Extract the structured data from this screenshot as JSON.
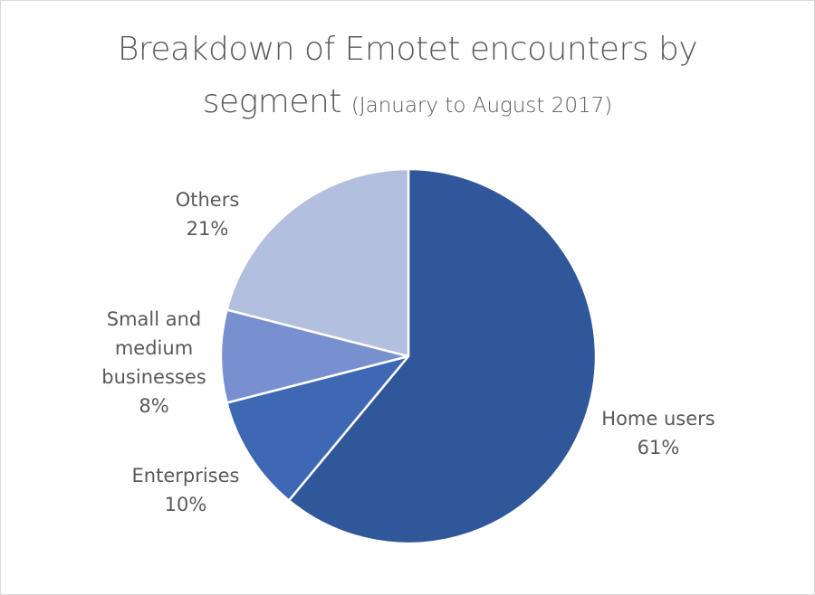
{
  "title": {
    "line1": "Breakdown of Emotet encounters by",
    "line2_main": "segment",
    "line2_sub": "(January to August 2017)"
  },
  "chart_data": {
    "type": "pie",
    "title": "Breakdown of Emotet encounters by segment",
    "subtitle": "(January to August 2017)",
    "start_angle_deg": 0,
    "direction": "clockwise",
    "slices": [
      {
        "label": "Home users",
        "value": 61,
        "value_label": "61%",
        "color": "#30579a"
      },
      {
        "label": "Enterprises",
        "value": 10,
        "value_label": "10%",
        "color": "#3e68b4"
      },
      {
        "label": "Small and medium businesses",
        "value": 8,
        "value_label": "8%",
        "color": "#788fd0"
      },
      {
        "label": "Others",
        "value": 21,
        "value_label": "21%",
        "color": "#b3bfdf"
      }
    ],
    "label_lines": [
      [
        "Home users",
        "61%"
      ],
      [
        "Enterprises",
        "10%"
      ],
      [
        "Small and",
        "medium",
        "businesses",
        "8%"
      ],
      [
        "Others",
        "21%"
      ]
    ],
    "legend": "none"
  }
}
